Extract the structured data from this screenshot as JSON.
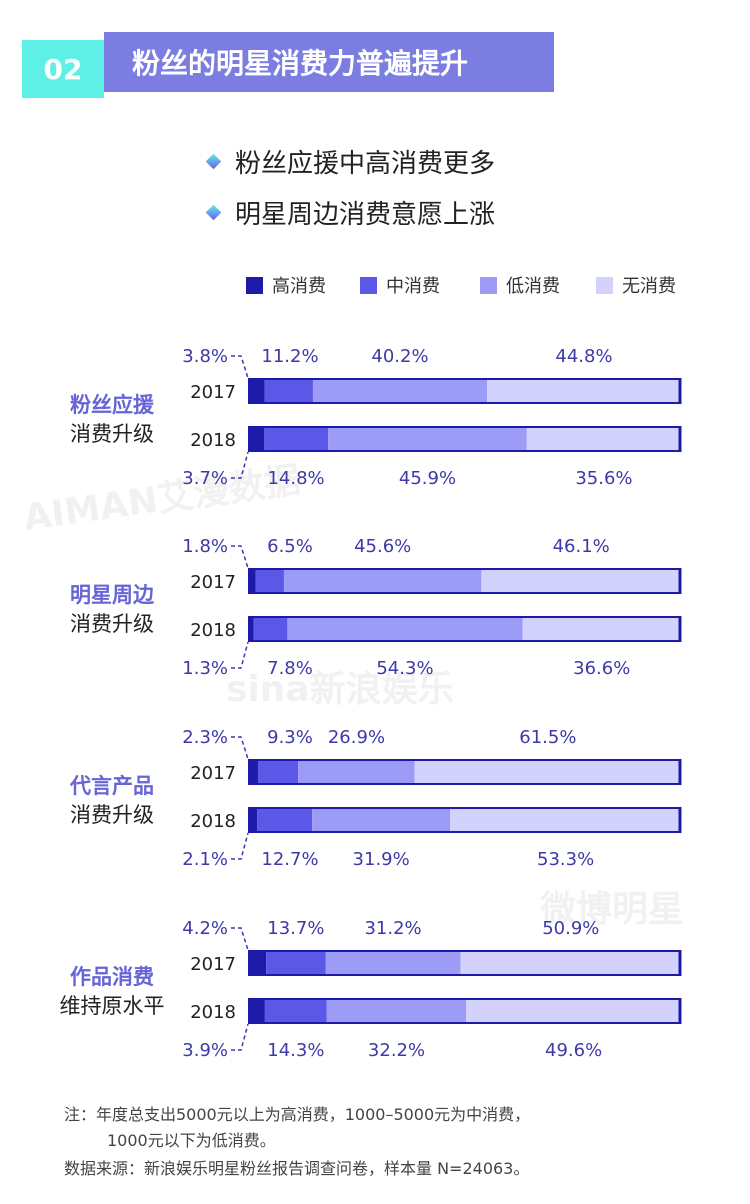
{
  "header": {
    "number": "02",
    "title": "粉丝的明星消费力普遍提升"
  },
  "bullets": [
    "粉丝应援中高消费更多",
    "明星周边消费意愿上涨"
  ],
  "watermarks": [
    "AIMAN艾漫数据",
    "sina新浪娱乐",
    "微博明星"
  ],
  "colors": [
    "#1e1aa8",
    "#5b58e8",
    "#9c9bf6",
    "#d2d2fc"
  ],
  "chart_data": {
    "type": "bar",
    "stacked": true,
    "orientation": "horizontal",
    "legend": {
      "position": "top-right",
      "labels": [
        "高消费",
        "中消费",
        "低消费",
        "无消费"
      ]
    },
    "groups": [
      {
        "label1": "粉丝应援",
        "label2": "消费升级",
        "years": [
          {
            "year": "2017",
            "values": [
              3.8,
              11.2,
              40.2,
              44.8
            ],
            "labels": [
              "3.8%",
              "11.2%",
              "40.2%",
              "44.8%"
            ]
          },
          {
            "year": "2018",
            "values": [
              3.7,
              14.8,
              45.9,
              35.6
            ],
            "labels": [
              "3.7%",
              "14.8%",
              "45.9%",
              "35.6%"
            ]
          }
        ]
      },
      {
        "label1": "明星周边",
        "label2": "消费升级",
        "years": [
          {
            "year": "2017",
            "values": [
              1.8,
              6.5,
              45.6,
              46.1
            ],
            "labels": [
              "1.8%",
              "6.5%",
              "45.6%",
              "46.1%"
            ]
          },
          {
            "year": "2018",
            "values": [
              1.3,
              7.8,
              54.3,
              36.6
            ],
            "labels": [
              "1.3%",
              "7.8%",
              "54.3%",
              "36.6%"
            ]
          }
        ]
      },
      {
        "label1": "代言产品",
        "label2": "消费升级",
        "years": [
          {
            "year": "2017",
            "values": [
              2.3,
              9.3,
              26.9,
              61.5
            ],
            "labels": [
              "2.3%",
              "9.3%",
              "26.9%",
              "61.5%"
            ]
          },
          {
            "year": "2018",
            "values": [
              2.1,
              12.7,
              31.9,
              53.3
            ],
            "labels": [
              "2.1%",
              "12.7%",
              "31.9%",
              "53.3%"
            ]
          }
        ]
      },
      {
        "label1": "作品消费",
        "label2": "维持原水平",
        "years": [
          {
            "year": "2017",
            "values": [
              4.2,
              13.7,
              31.2,
              50.9
            ],
            "labels": [
              "4.2%",
              "13.7%",
              "31.2%",
              "50.9%"
            ]
          },
          {
            "year": "2018",
            "values": [
              3.9,
              14.3,
              32.2,
              49.6
            ],
            "labels": [
              "3.9%",
              "14.3%",
              "32.2%",
              "49.6%"
            ]
          }
        ]
      }
    ]
  },
  "notes": [
    "注：年度总支出5000元以上为高消费，1000–5000元为中消费，",
    "1000元以下为低消费。",
    "数据来源：新浪娱乐明星粉丝报告调查问卷，样本量 N=24063。"
  ]
}
